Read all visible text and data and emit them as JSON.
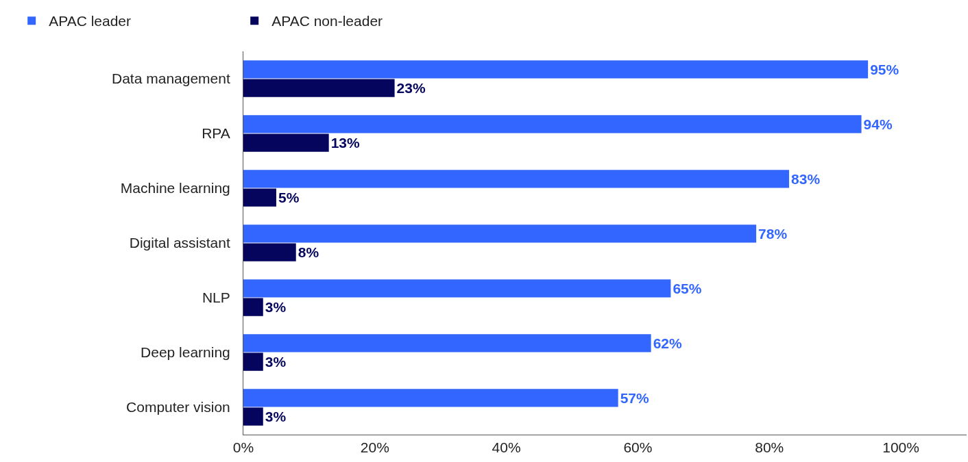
{
  "chart_data": {
    "type": "bar",
    "orientation": "horizontal",
    "categories": [
      "Data management",
      "RPA",
      "Machine learning",
      "Digital assistant",
      "NLP",
      "Deep learning",
      "Computer vision"
    ],
    "series": [
      {
        "name": "APAC leader",
        "color": "#3366ff",
        "values": [
          95,
          94,
          83,
          78,
          65,
          62,
          57
        ],
        "value_labels": [
          "95%",
          "94%",
          "83%",
          "78%",
          "65%",
          "62%",
          "57%"
        ]
      },
      {
        "name": "APAC non-leader",
        "color": "#05055e",
        "values": [
          23,
          13,
          5,
          8,
          3,
          3,
          3
        ],
        "value_labels": [
          "23%",
          "13%",
          "5%",
          "8%",
          "3%",
          "3%",
          "3%"
        ]
      }
    ],
    "xlim": [
      0,
      110
    ],
    "xticks": [
      {
        "value": 0,
        "label": "0%"
      },
      {
        "value": 20,
        "label": "20%"
      },
      {
        "value": 40,
        "label": "40%"
      },
      {
        "value": 60,
        "label": "60%"
      },
      {
        "value": 80,
        "label": "80%"
      },
      {
        "value": 100,
        "label": "100%"
      }
    ],
    "legend": "top left"
  }
}
